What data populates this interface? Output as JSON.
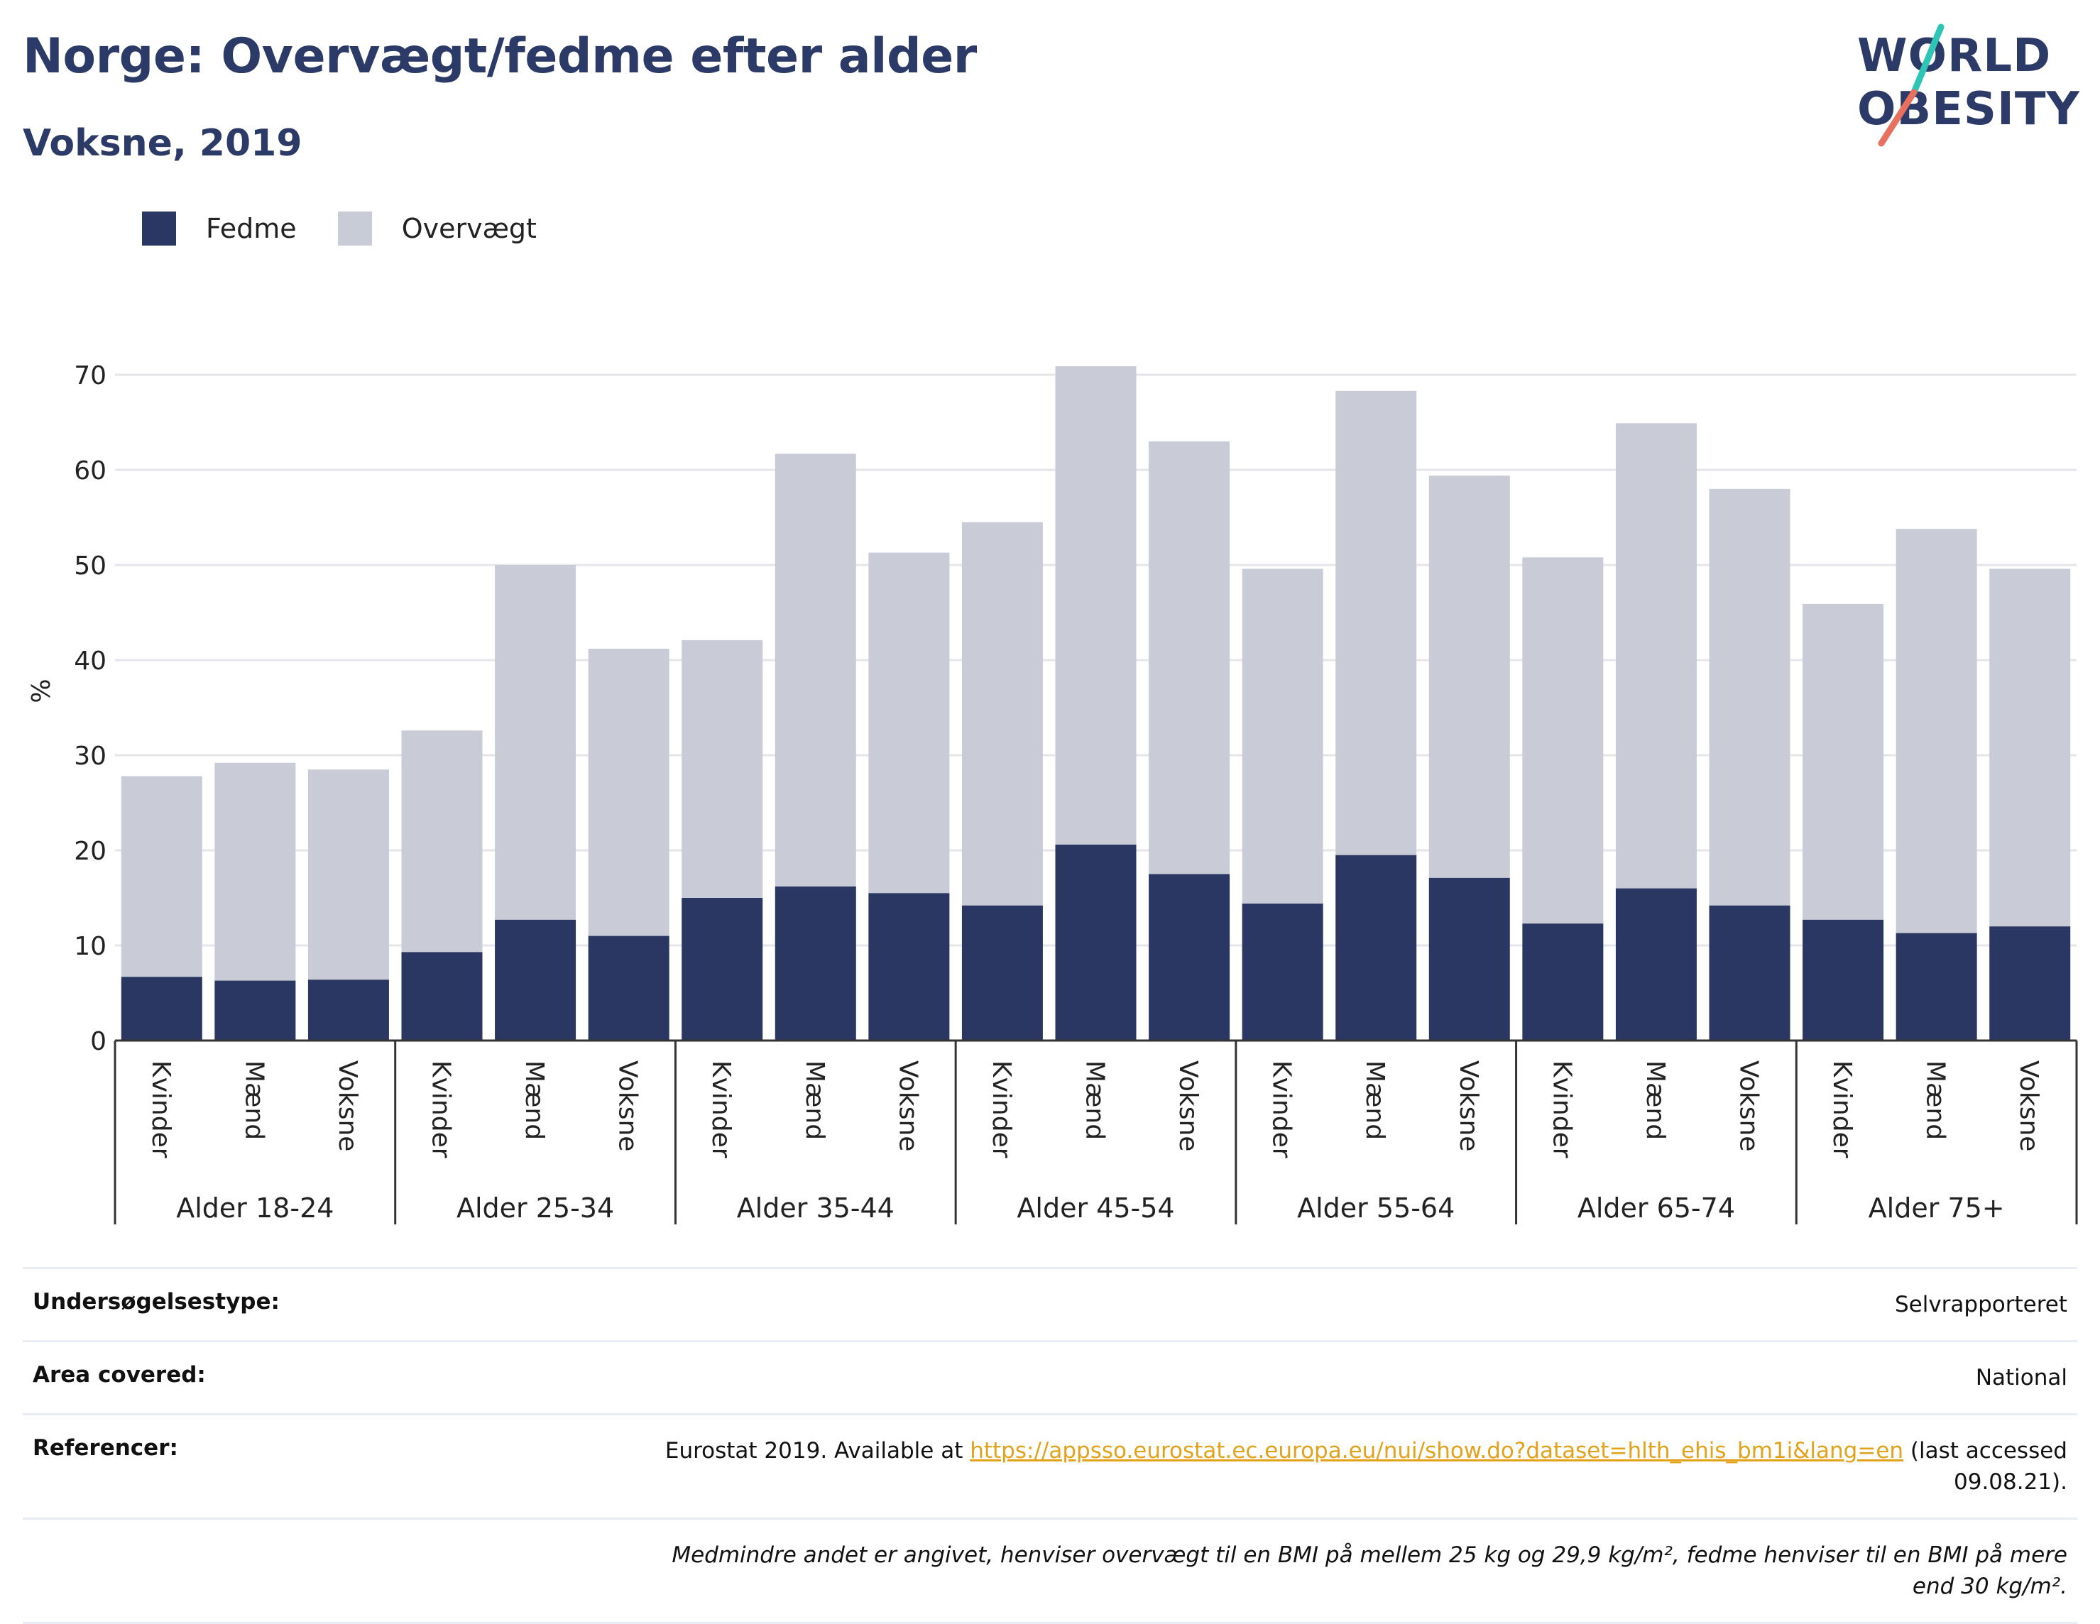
{
  "header": {
    "title": "Norge: Overvægt/fedme efter alder",
    "subtitle": "Voksne, 2019"
  },
  "logo": {
    "line1": "WORLD",
    "line2": "OBESITY",
    "accent_colors": [
      "#2ec4b6",
      "#e8705f"
    ]
  },
  "colors": {
    "fedme": "#2b3763",
    "overvaegt": "#c9cbd7",
    "title": "#2b3a67",
    "link": "#e3a21a"
  },
  "legend": {
    "fedme_label": "Fedme",
    "overvaegt_label": "Overvægt"
  },
  "chart_data": {
    "type": "bar",
    "stacked": true,
    "ylabel": "%",
    "ylim": [
      0,
      75
    ],
    "yticks": [
      0,
      10,
      20,
      30,
      40,
      50,
      60,
      70
    ],
    "grid": true,
    "legend_position": "top-left",
    "groups": [
      {
        "label": "Alder 18-24",
        "bars": [
          {
            "label": "Kvinder",
            "fedme": 6.7,
            "overvaegt": 21.1
          },
          {
            "label": "Mænd",
            "fedme": 6.3,
            "overvaegt": 22.9
          },
          {
            "label": "Voksne",
            "fedme": 6.4,
            "overvaegt": 22.1
          }
        ]
      },
      {
        "label": "Alder 25-34",
        "bars": [
          {
            "label": "Kvinder",
            "fedme": 9.3,
            "overvaegt": 23.3
          },
          {
            "label": "Mænd",
            "fedme": 12.7,
            "overvaegt": 37.3
          },
          {
            "label": "Voksne",
            "fedme": 11.0,
            "overvaegt": 30.2
          }
        ]
      },
      {
        "label": "Alder 35-44",
        "bars": [
          {
            "label": "Kvinder",
            "fedme": 15.0,
            "overvaegt": 27.1
          },
          {
            "label": "Mænd",
            "fedme": 16.2,
            "overvaegt": 45.5
          },
          {
            "label": "Voksne",
            "fedme": 15.5,
            "overvaegt": 35.8
          }
        ]
      },
      {
        "label": "Alder 45-54",
        "bars": [
          {
            "label": "Kvinder",
            "fedme": 14.2,
            "overvaegt": 40.3
          },
          {
            "label": "Mænd",
            "fedme": 20.6,
            "overvaegt": 50.3
          },
          {
            "label": "Voksne",
            "fedme": 17.5,
            "overvaegt": 45.5
          }
        ]
      },
      {
        "label": "Alder 55-64",
        "bars": [
          {
            "label": "Kvinder",
            "fedme": 14.4,
            "overvaegt": 35.2
          },
          {
            "label": "Mænd",
            "fedme": 19.5,
            "overvaegt": 48.8
          },
          {
            "label": "Voksne",
            "fedme": 17.1,
            "overvaegt": 42.3
          }
        ]
      },
      {
        "label": "Alder 65-74",
        "bars": [
          {
            "label": "Kvinder",
            "fedme": 12.3,
            "overvaegt": 38.5
          },
          {
            "label": "Mænd",
            "fedme": 16.0,
            "overvaegt": 48.9
          },
          {
            "label": "Voksne",
            "fedme": 14.2,
            "overvaegt": 43.8
          }
        ]
      },
      {
        "label": "Alder 75+",
        "bars": [
          {
            "label": "Kvinder",
            "fedme": 12.7,
            "overvaegt": 33.2
          },
          {
            "label": "Mænd",
            "fedme": 11.3,
            "overvaegt": 42.5
          },
          {
            "label": "Voksne",
            "fedme": 12.0,
            "overvaegt": 37.6
          }
        ]
      }
    ]
  },
  "info": {
    "survey_label": "Undersøgelsestype:",
    "survey_value": "Selvrapporteret",
    "area_label": "Area covered:",
    "area_value": "National",
    "ref_label": "Referencer:",
    "ref_prefix": "Eurostat 2019. Available at ",
    "ref_link": "https://appsso.eurostat.ec.europa.eu/nui/show.do?dataset=hlth_ehis_bm1i&lang=en",
    "ref_suffix": " (last accessed 09.08.21).",
    "note": "Medmindre andet er angivet, henviser overvægt til en BMI på mellem 25 kg og 29,9 kg/m², fedme henviser til en BMI på mere end 30 kg/m²."
  }
}
